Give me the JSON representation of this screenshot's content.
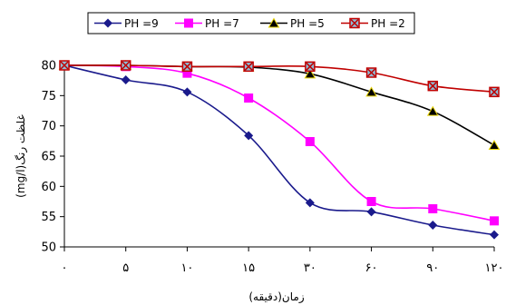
{
  "chart_data": {
    "type": "line",
    "title": "",
    "xlabel": "زمان(دقیقه)",
    "ylabel": "غلظت رنگ(mg/l)",
    "categories": [
      "۰",
      "۵",
      "۱۰",
      "۱۵",
      "۳۰",
      "۶۰",
      "۹۰",
      "۱۲۰"
    ],
    "ylim": [
      50,
      80
    ],
    "yticks": [
      50,
      55,
      60,
      65,
      70,
      75,
      80
    ],
    "legend_position": "top",
    "grid": false,
    "series": [
      {
        "name": "PH =9",
        "color": "#1a1a8c",
        "marker": "diamond",
        "values": [
          80,
          77.6,
          75.6,
          68.4,
          57.3,
          55.8,
          53.6,
          52.0
        ]
      },
      {
        "name": "PH =7",
        "color": "#ff00ff",
        "marker": "square",
        "values": [
          80,
          79.8,
          78.7,
          74.6,
          67.4,
          57.5,
          56.3,
          54.3
        ]
      },
      {
        "name": "PH =5",
        "color": "#000000",
        "marker": "triangle",
        "values": [
          80,
          80,
          79.8,
          79.7,
          78.6,
          75.6,
          72.4,
          66.8
        ]
      },
      {
        "name": "PH =2",
        "color": "#c00000",
        "marker": "xsquare",
        "values": [
          80,
          80,
          79.8,
          79.8,
          79.8,
          78.8,
          76.6,
          75.6
        ]
      }
    ]
  }
}
